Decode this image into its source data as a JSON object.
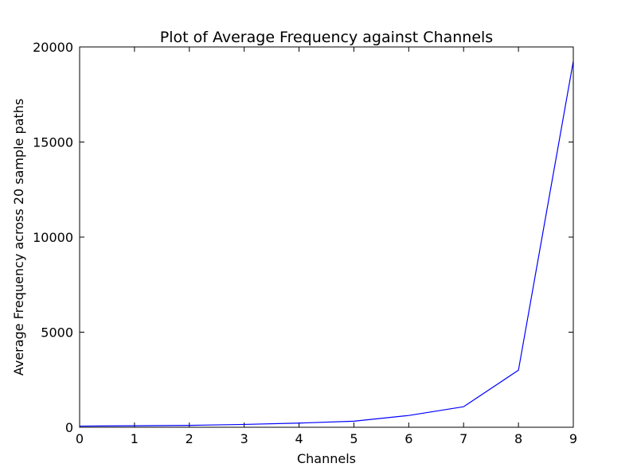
{
  "chart_data": {
    "type": "line",
    "title": "Plot of Average Frequency against Channels",
    "xlabel": "Channels",
    "ylabel": "Average Frequency across 20 sample paths",
    "xlim": [
      0,
      9
    ],
    "ylim": [
      0,
      20000
    ],
    "x_ticks": [
      "0",
      "1",
      "2",
      "3",
      "4",
      "5",
      "6",
      "7",
      "8",
      "9"
    ],
    "y_ticks": [
      "0",
      "5000",
      "10000",
      "15000",
      "20000"
    ],
    "grid": false,
    "series": [
      {
        "x": [
          0,
          1,
          2,
          3,
          4,
          5,
          6,
          7,
          8,
          9
        ],
        "values": [
          60,
          80,
          100,
          150,
          220,
          320,
          620,
          1080,
          3000,
          19250
        ],
        "color": "#0000ff"
      }
    ]
  }
}
